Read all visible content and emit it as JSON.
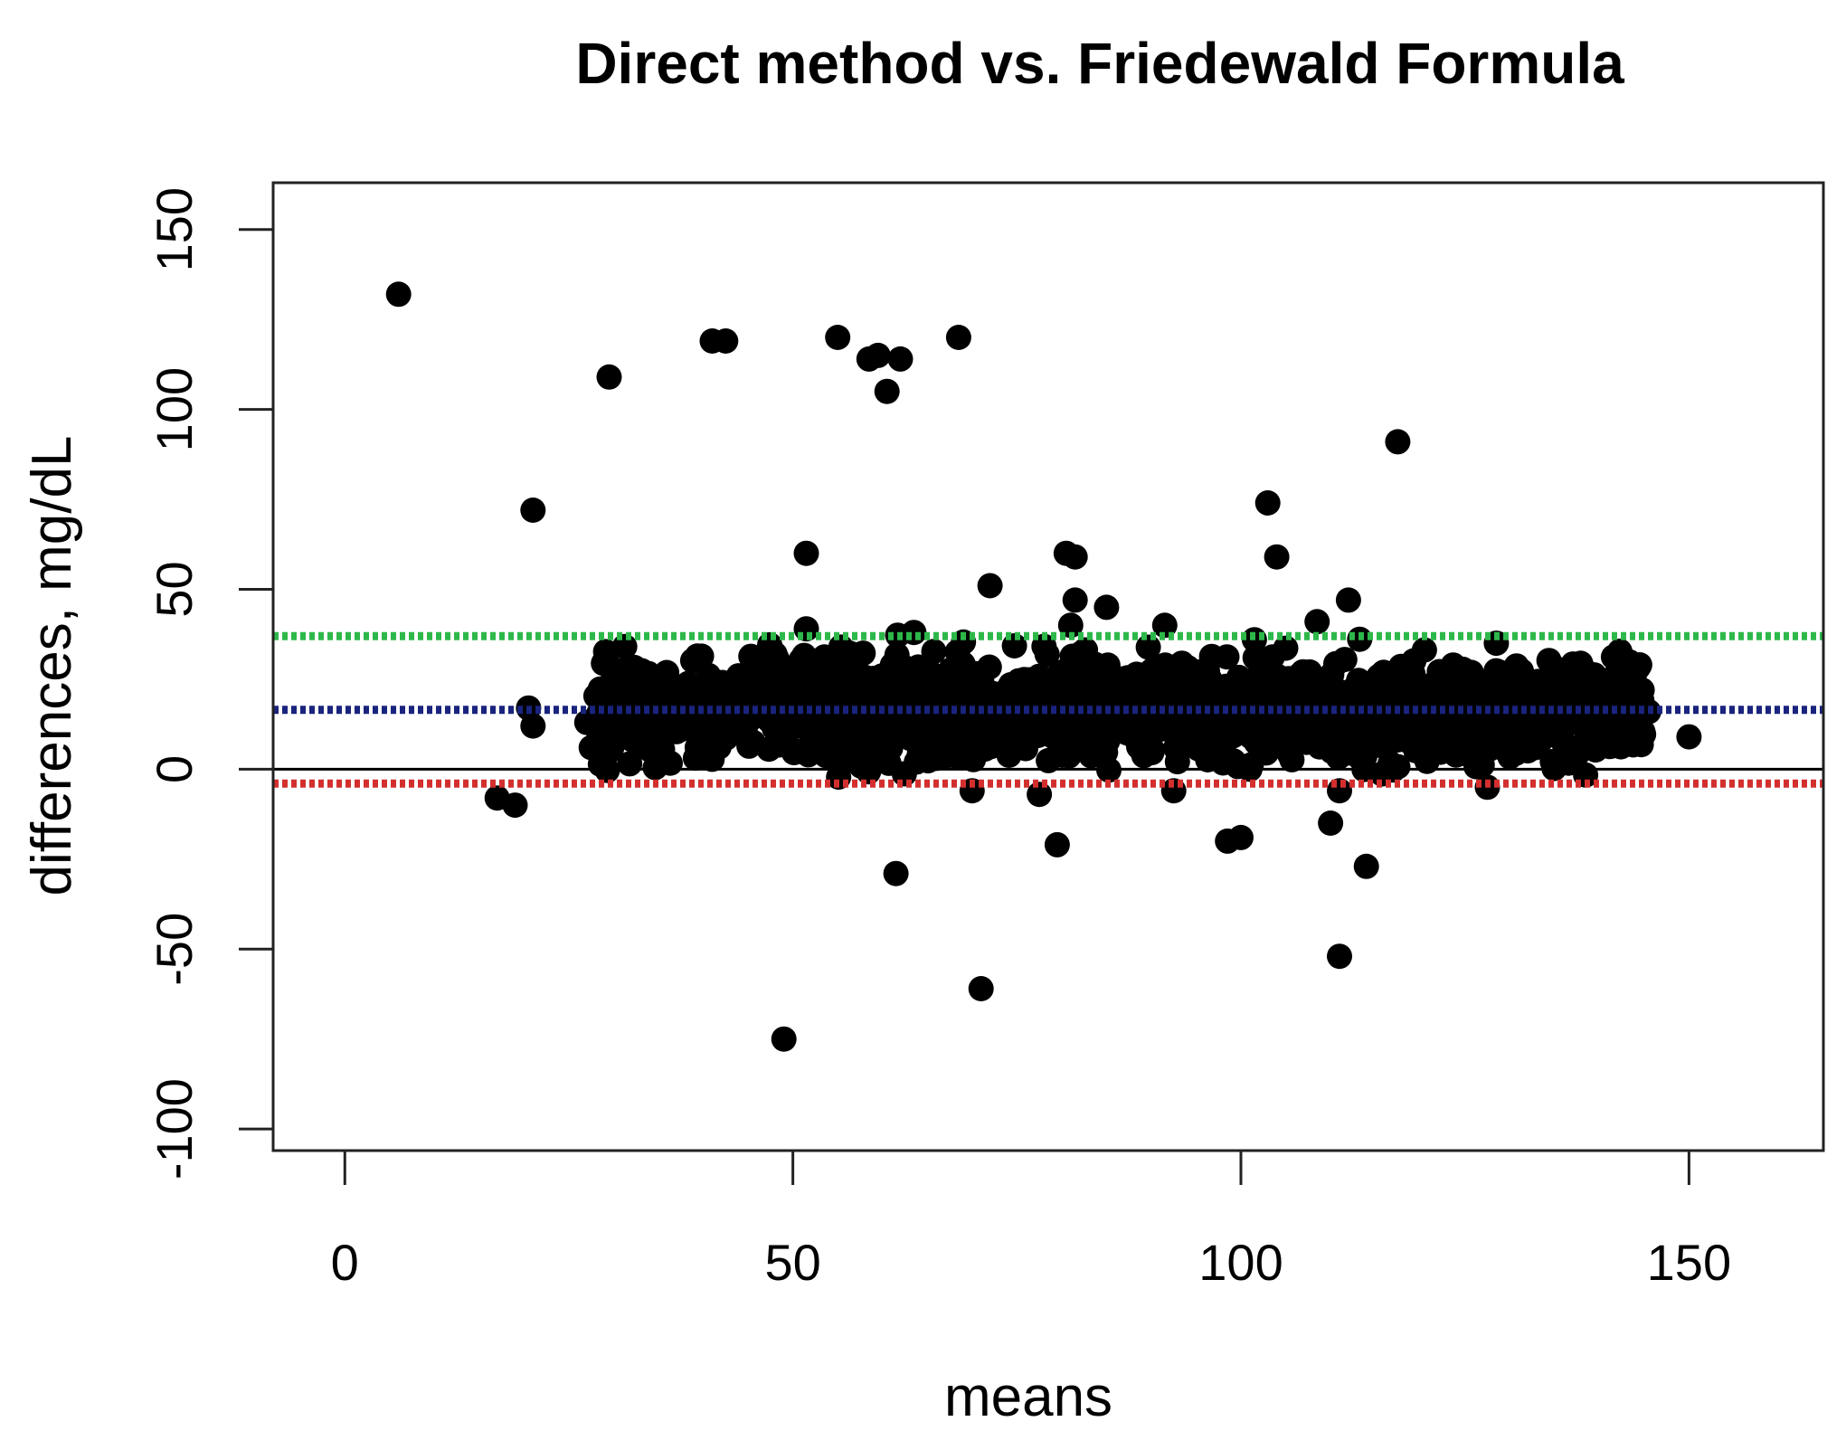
{
  "chart_data": {
    "type": "scatter",
    "title": "Direct method vs. Friedewald Formula",
    "xlabel": "means",
    "ylabel": "differences, mg/dL",
    "xlim": [
      -8,
      165
    ],
    "ylim": [
      -106,
      163
    ],
    "x_ticks": [
      0,
      50,
      100,
      150
    ],
    "y_ticks": [
      -100,
      -50,
      0,
      50,
      100,
      150
    ],
    "grid": false,
    "legend": "none",
    "reference_lines": [
      {
        "role": "upper-limit",
        "y": 37,
        "color": "#2db84a",
        "style": "dotted"
      },
      {
        "role": "mean-difference",
        "y": 16.5,
        "color": "#1a237e",
        "style": "dotted"
      },
      {
        "role": "zero",
        "y": 0,
        "color": "#000000",
        "style": "solid"
      },
      {
        "role": "lower-limit",
        "y": -4,
        "color": "#d32f2f",
        "style": "dotted"
      }
    ],
    "cluster": {
      "x_range": [
        28,
        145
      ],
      "y_center": 16.5,
      "y_spread": 8,
      "point_count": 1400
    },
    "outliers": [
      {
        "x": 6,
        "y": 132
      },
      {
        "x": 29.5,
        "y": 109
      },
      {
        "x": 41,
        "y": 119
      },
      {
        "x": 42.5,
        "y": 119
      },
      {
        "x": 55,
        "y": 120
      },
      {
        "x": 58.5,
        "y": 114
      },
      {
        "x": 59.5,
        "y": 115
      },
      {
        "x": 60.5,
        "y": 105
      },
      {
        "x": 62,
        "y": 114
      },
      {
        "x": 68.5,
        "y": 120
      },
      {
        "x": 21,
        "y": 72
      },
      {
        "x": 51.5,
        "y": 60
      },
      {
        "x": 117.5,
        "y": 91
      },
      {
        "x": 103,
        "y": 74
      },
      {
        "x": 104,
        "y": 59
      },
      {
        "x": 80.5,
        "y": 60
      },
      {
        "x": 81.5,
        "y": 59
      },
      {
        "x": 72,
        "y": 51
      },
      {
        "x": 81.5,
        "y": 47
      },
      {
        "x": 85,
        "y": 45
      },
      {
        "x": 112,
        "y": 47
      },
      {
        "x": 51.5,
        "y": 39
      },
      {
        "x": 63.5,
        "y": 38
      },
      {
        "x": 81,
        "y": 40
      },
      {
        "x": 91.5,
        "y": 40
      },
      {
        "x": 108.5,
        "y": 41
      },
      {
        "x": 101.5,
        "y": 36
      },
      {
        "x": 128.5,
        "y": 35
      },
      {
        "x": 144.5,
        "y": 29
      },
      {
        "x": 48,
        "y": 32
      },
      {
        "x": 20.5,
        "y": 17
      },
      {
        "x": 21,
        "y": 12
      },
      {
        "x": 27,
        "y": 13
      },
      {
        "x": 27.5,
        "y": 6
      },
      {
        "x": 29.5,
        "y": 5
      },
      {
        "x": 150,
        "y": 9
      },
      {
        "x": 145.5,
        "y": 16
      },
      {
        "x": 143,
        "y": 7
      },
      {
        "x": 17,
        "y": -8
      },
      {
        "x": 19,
        "y": -10
      },
      {
        "x": 70,
        "y": -6
      },
      {
        "x": 77.5,
        "y": -7
      },
      {
        "x": 92.5,
        "y": -6
      },
      {
        "x": 101,
        "y": 0
      },
      {
        "x": 111,
        "y": -6
      },
      {
        "x": 127.5,
        "y": -5
      },
      {
        "x": 79.5,
        "y": -21
      },
      {
        "x": 98.5,
        "y": -20
      },
      {
        "x": 100,
        "y": -19
      },
      {
        "x": 110,
        "y": -15
      },
      {
        "x": 114,
        "y": -27
      },
      {
        "x": 61.5,
        "y": -29
      },
      {
        "x": 111,
        "y": -52
      },
      {
        "x": 71,
        "y": -61
      },
      {
        "x": 49,
        "y": -75
      }
    ]
  }
}
